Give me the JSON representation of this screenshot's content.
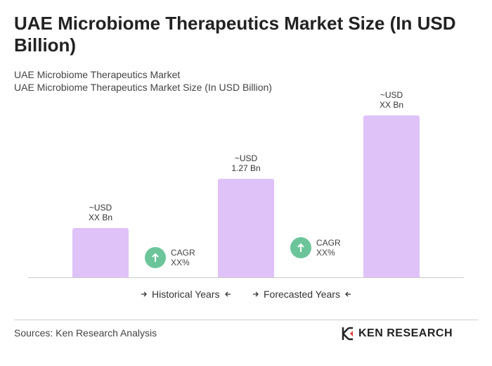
{
  "title": "UAE Microbiome Therapeutics Market Size (In USD Billion)",
  "subtitle": [
    "UAE Microbiome Therapeutics Market",
    "UAE Microbiome Therapeutics Market Size (In USD Billion)"
  ],
  "chart_data": {
    "type": "bar",
    "values": [
      0.64,
      1.27,
      2.09
    ],
    "value_labels": [
      "~USD\nXX Bn",
      "~USD\n1.27 Bn",
      "~USD\nXX Bn"
    ],
    "color": "#dfc2f8",
    "annotations": [
      "CAGR\nXX%",
      "CAGR\nXX%"
    ],
    "annotation_color": "#6cc59a",
    "legend": [
      "Historical Years",
      "Forecasted Years"
    ]
  },
  "source": "Sources: Ken Research Analysis",
  "brand": "KEN RESEARCH"
}
